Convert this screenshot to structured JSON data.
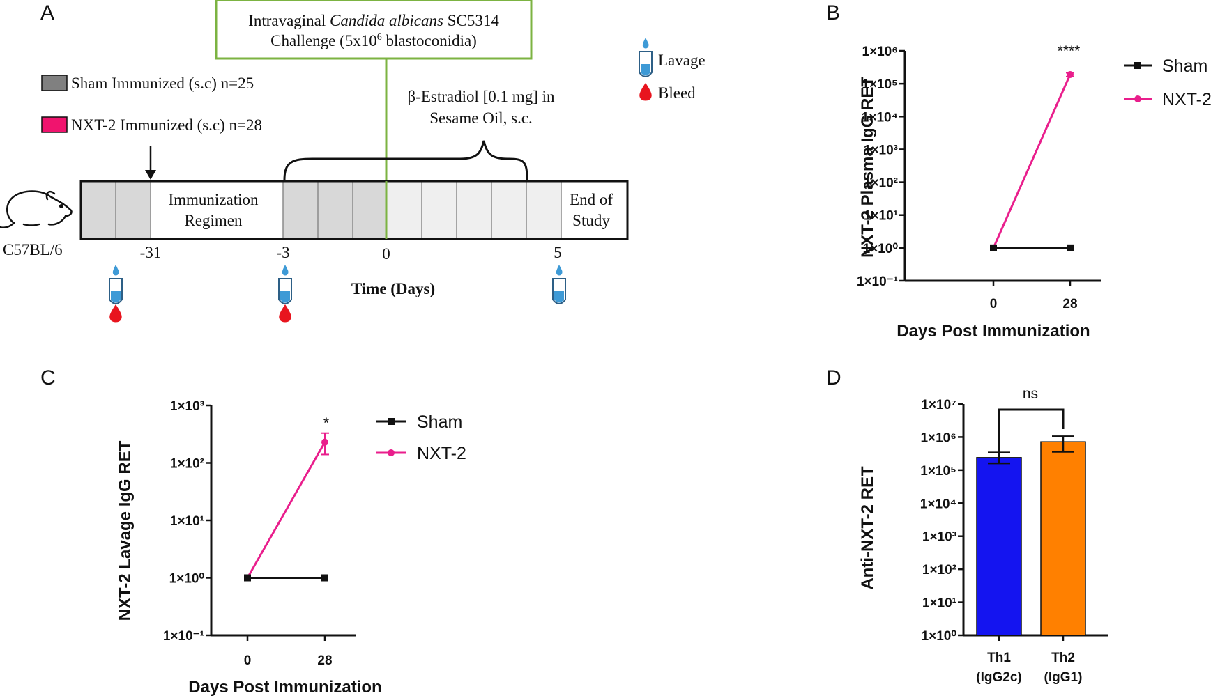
{
  "panels": {
    "a": "A",
    "b": "B",
    "c": "C",
    "d": "D"
  },
  "timeline": {
    "challenge_line1_pre": "Intravaginal ",
    "challenge_line1_italic": "Candida albicans",
    "challenge_line1_post": " SC5314",
    "challenge_line2_pre": "Challenge (5x10",
    "challenge_line2_sup": "6",
    "challenge_line2_post": " blastoconidia)",
    "legend_sham": "Sham Immunized (s.c) n=25",
    "legend_nxt2": "NXT-2 Immunized (s.c) n=28",
    "estradiol_line1": "β-Estradiol [0.1 mg] in",
    "estradiol_line2": "Sesame Oil, s.c.",
    "immunization_line1": "Immunization",
    "immunization_line2": "Regimen",
    "end_line1": "End of",
    "end_line2": "Study",
    "mouse_strain": "C57BL/6",
    "day_ticks": [
      "-31",
      "-3",
      "0",
      "5"
    ],
    "x_axis_label": "Time (Days)",
    "lavage_label": "Lavage",
    "bleed_label": "Bleed",
    "colors": {
      "sham": "#808080",
      "nxt2": "#f0146e",
      "challenge_box": "#7cb342",
      "lavage": "#3e9ad6",
      "bleed": "#e8141e"
    }
  },
  "chart_data": [
    {
      "id": "B",
      "type": "line",
      "scale": "log10",
      "xlabel": "Days Post Immunization",
      "ylabel": "NXT-2 Plasma IgG RET",
      "x": [
        0,
        28
      ],
      "x_tick_labels": [
        "0",
        "28"
      ],
      "ylim_exp": [
        -1,
        6
      ],
      "y_tick_labels": [
        "1×10⁻¹",
        "1×10⁰",
        "1×10¹",
        "1×10²",
        "1×10³",
        "1×10⁴",
        "1×10⁵",
        "1×10⁶"
      ],
      "series": [
        {
          "name": "Sham",
          "color": "#111111",
          "marker": "square",
          "values": [
            1,
            1
          ]
        },
        {
          "name": "NXT-2",
          "color": "#e91e8c",
          "marker": "circle",
          "values": [
            1,
            190000
          ],
          "err_hi": [
            1,
            215000
          ],
          "err_lo": [
            1,
            165000
          ]
        }
      ],
      "annotation": "****"
    },
    {
      "id": "C",
      "type": "line",
      "scale": "log10",
      "xlabel": "Days Post Immunization",
      "ylabel": "NXT-2 Lavage IgG RET",
      "x": [
        0,
        28
      ],
      "x_tick_labels": [
        "0",
        "28"
      ],
      "ylim_exp": [
        -1,
        3
      ],
      "y_tick_labels": [
        "1×10⁻¹",
        "1×10⁰",
        "1×10¹",
        "1×10²",
        "1×10³"
      ],
      "series": [
        {
          "name": "Sham",
          "color": "#111111",
          "marker": "square",
          "values": [
            1,
            1
          ]
        },
        {
          "name": "NXT-2",
          "color": "#e91e8c",
          "marker": "circle",
          "values": [
            1,
            230
          ],
          "err_hi": [
            1,
            330
          ],
          "err_lo": [
            1,
            140
          ]
        }
      ],
      "annotation": "*"
    },
    {
      "id": "D",
      "type": "bar",
      "scale": "log10",
      "ylabel": "Anti-NXT-2 RET",
      "categories": [
        [
          "Th1",
          "(IgG2c)"
        ],
        [
          "Th2",
          "(IgG1)"
        ]
      ],
      "ylim_exp": [
        0,
        7
      ],
      "y_tick_labels": [
        "1×10⁰",
        "1×10¹",
        "1×10²",
        "1×10³",
        "1×10⁴",
        "1×10⁵",
        "1×10⁶",
        "1×10⁷"
      ],
      "values": [
        240000,
        720000
      ],
      "err_hi": [
        340000,
        1050000
      ],
      "err_lo": [
        160000,
        360000
      ],
      "colors": [
        "#1414f0",
        "#ff8000"
      ],
      "annotation": "ns"
    }
  ]
}
